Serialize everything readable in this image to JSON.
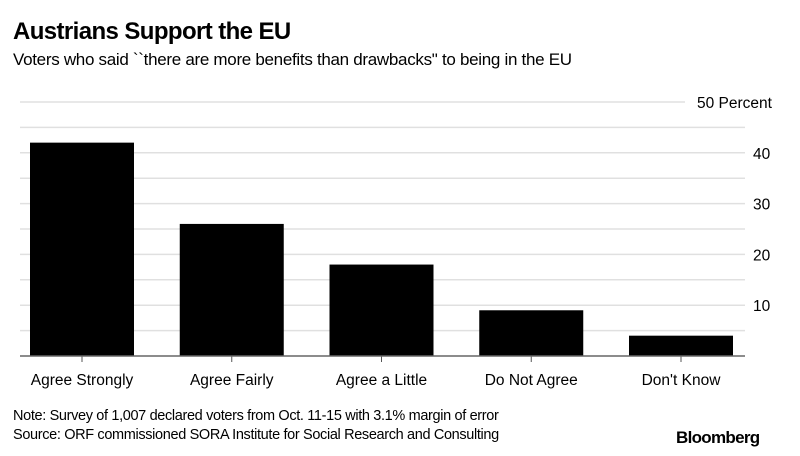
{
  "chart_data": {
    "type": "bar",
    "title": "Austrians Support the EU",
    "subtitle": "Voters who said ``there are more benefits than drawbacks\" to being in the EU",
    "categories": [
      "Agree Strongly",
      "Agree Fairly",
      "Agree a Little",
      "Do Not Agree",
      "Don't Know"
    ],
    "values": [
      42,
      26,
      18,
      9,
      4
    ],
    "xlabel": "",
    "ylabel": "Percent",
    "ylim": [
      0,
      50
    ],
    "yticks": [
      {
        "value": 10,
        "label": "10"
      },
      {
        "value": 20,
        "label": "20"
      },
      {
        "value": 30,
        "label": "30"
      },
      {
        "value": 40,
        "label": "40"
      },
      {
        "value": 50,
        "label": "50 Percent"
      }
    ],
    "minor_gridlines_every": 5,
    "grid": true,
    "y_axis_side": "right",
    "bar_color": "#000000",
    "grid_color": "#e0e0e0"
  },
  "footer": {
    "note": "Note: Survey of 1,007 declared voters from Oct. 11-15 with 3.1% margin of error",
    "source": "Source: ORF commissioned SORA Institute for Social Research and Consulting",
    "brand": "Bloomberg"
  }
}
